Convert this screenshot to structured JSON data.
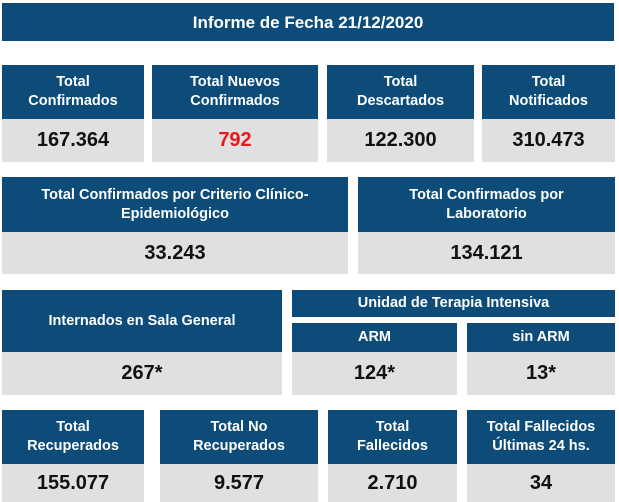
{
  "title": "Informe de Fecha 21/12/2020",
  "row1": [
    {
      "label": "Total\nConfirmados",
      "value": "167.364"
    },
    {
      "label": "Total Nuevos\nConfirmados",
      "value": "792"
    },
    {
      "label": "Total\nDescartados",
      "value": "122.300"
    },
    {
      "label": "Total\nNotificados",
      "value": "310.473"
    }
  ],
  "row2": [
    {
      "label": "Total Confirmados por Criterio Clínico-\nEpidemiológico",
      "value": "33.243"
    },
    {
      "label": "Total Confirmados por\nLaboratorio",
      "value": "134.121"
    }
  ],
  "row3": {
    "sala_general": {
      "label": "Internados en Sala General",
      "value": "267*"
    },
    "uti_label": "Unidad de Terapia Intensiva",
    "arm": {
      "label": "ARM",
      "value": "124*"
    },
    "sin_arm": {
      "label": "sin ARM",
      "value": "13*"
    }
  },
  "row4": [
    {
      "label": "Total\nRecuperados",
      "value": "155.077"
    },
    {
      "label": "Total No\nRecuperados",
      "value": "9.577"
    },
    {
      "label": "Total\nFallecidos",
      "value": "2.710"
    },
    {
      "label": "Total Fallecidos\nÚltimas 24 hs.",
      "value": "34"
    }
  ],
  "colors": {
    "header_bg": "#0d4c79",
    "value_bg": "#e0e0e0",
    "highlight": "#e8191c"
  }
}
